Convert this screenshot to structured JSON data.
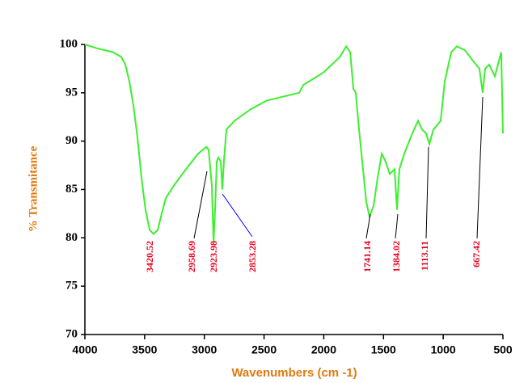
{
  "chart_data": {
    "type": "line",
    "xlabel": "Wavenumbers (cm -1)",
    "ylabel": "% Transmitance",
    "xlim": [
      4000,
      500
    ],
    "ylim": [
      70,
      100
    ],
    "xticks": [
      4000,
      3500,
      3000,
      2500,
      2000,
      1500,
      1000,
      500
    ],
    "yticks": [
      70,
      75,
      80,
      85,
      90,
      95,
      100
    ],
    "series": [
      {
        "color": "#3cef2f",
        "x": [
          4000,
          3898,
          3763,
          3695,
          3661,
          3628,
          3594,
          3560,
          3526,
          3492,
          3458,
          3425,
          3391,
          3357,
          3323,
          3255,
          3154,
          3052,
          2984,
          2964,
          2937,
          2923,
          2910,
          2896,
          2883,
          2863,
          2849,
          2836,
          2815,
          2747,
          2612,
          2477,
          2206,
          2172,
          2003,
          1867,
          1813,
          1779,
          1752,
          1732,
          1712,
          1678,
          1644,
          1617,
          1583,
          1549,
          1515,
          1482,
          1448,
          1407,
          1387,
          1367,
          1326,
          1259,
          1211,
          1177,
          1143,
          1116,
          1082,
          1021,
          987,
          933,
          886,
          818,
          751,
          697,
          670,
          649,
          615,
          568,
          534,
          514,
          500
        ],
        "values": [
          100,
          99.6,
          99.2,
          98.7,
          97.9,
          96.2,
          93.7,
          90.4,
          86.2,
          82.9,
          80.8,
          80.4,
          80.8,
          82.5,
          84.1,
          85.4,
          87.1,
          88.7,
          89.4,
          89.1,
          85.4,
          79.5,
          82.9,
          87.9,
          88.3,
          87.9,
          85.0,
          87.9,
          91.2,
          92.1,
          93.3,
          94.2,
          95.0,
          95.8,
          97.1,
          98.7,
          99.8,
          99.2,
          95.4,
          95.0,
          92.1,
          87.9,
          83.7,
          82.2,
          83.3,
          86.2,
          88.7,
          87.9,
          86.6,
          87.1,
          82.9,
          87.1,
          88.7,
          90.8,
          92.1,
          91.2,
          90.8,
          89.7,
          91.2,
          92.1,
          96.2,
          99.2,
          99.8,
          99.4,
          98.3,
          97.5,
          95.0,
          97.5,
          97.9,
          96.7,
          98.3,
          99.2,
          90.8
        ]
      }
    ],
    "annotations": [
      {
        "text": "3420.52"
      },
      {
        "text": "2958.69",
        "line_color": "#000000"
      },
      {
        "text": "2923.98"
      },
      {
        "text": "2853.28",
        "line_color": "#0000ff"
      },
      {
        "text": "1741.14",
        "line_color": "#000000"
      },
      {
        "text": "1384.02",
        "line_color": "#000000"
      },
      {
        "text": "1113.11",
        "line_color": "#000000"
      },
      {
        "text": "667.42",
        "line_color": "#000000"
      }
    ],
    "annotation_color": "#e8001c",
    "label_color": "#e07a10"
  }
}
